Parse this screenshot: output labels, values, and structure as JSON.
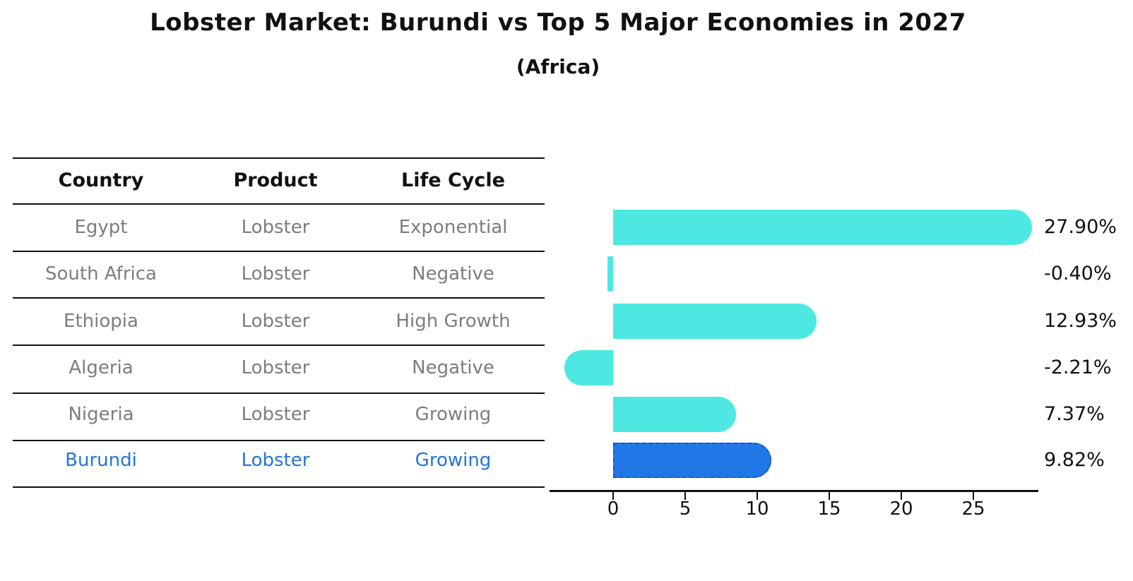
{
  "title": "Lobster Market: Burundi vs Top 5 Major Economies in 2027",
  "subtitle": "(Africa)",
  "table": {
    "headers": [
      "Country",
      "Product",
      "Life Cycle"
    ],
    "rows": [
      {
        "country": "Egypt",
        "product": "Lobster",
        "life_cycle": "Exponential",
        "highlight": false
      },
      {
        "country": "South Africa",
        "product": "Lobster",
        "life_cycle": "Negative",
        "highlight": false
      },
      {
        "country": "Ethiopia",
        "product": "Lobster",
        "life_cycle": "High Growth",
        "highlight": false
      },
      {
        "country": "Algeria",
        "product": "Lobster",
        "life_cycle": "Negative",
        "highlight": false
      },
      {
        "country": "Nigeria",
        "product": "Lobster",
        "life_cycle": "Growing",
        "highlight": false
      },
      {
        "country": "Burundi",
        "product": "Lobster",
        "life_cycle": "Growing",
        "highlight": true
      }
    ]
  },
  "chart_data": {
    "type": "bar",
    "orientation": "horizontal",
    "title": "Lobster Market: Burundi vs Top 5 Major Economies in 2027 (Africa)",
    "categories": [
      "Egypt",
      "South Africa",
      "Ethiopia",
      "Algeria",
      "Nigeria",
      "Burundi"
    ],
    "values": [
      27.9,
      -0.4,
      12.93,
      -2.21,
      7.37,
      9.82
    ],
    "value_labels": [
      "27.90%",
      "-0.40%",
      "12.93%",
      "-2.21%",
      "7.37%",
      "9.82%"
    ],
    "x_ticks": [
      0,
      5,
      10,
      15,
      20,
      25
    ],
    "xlim": [
      -4.4,
      29.5
    ],
    "grid": false,
    "legend": false,
    "highlight_category": "Burundi"
  },
  "colors": {
    "bar_default": "#4DE8E2",
    "bar_highlight": "#2078E6",
    "bar_highlight_border": "#1553CD",
    "text_default_row": "#7d7d7d",
    "text_highlight_row": "#2276D8",
    "text_heading": "#111111",
    "axis": "#111111"
  }
}
